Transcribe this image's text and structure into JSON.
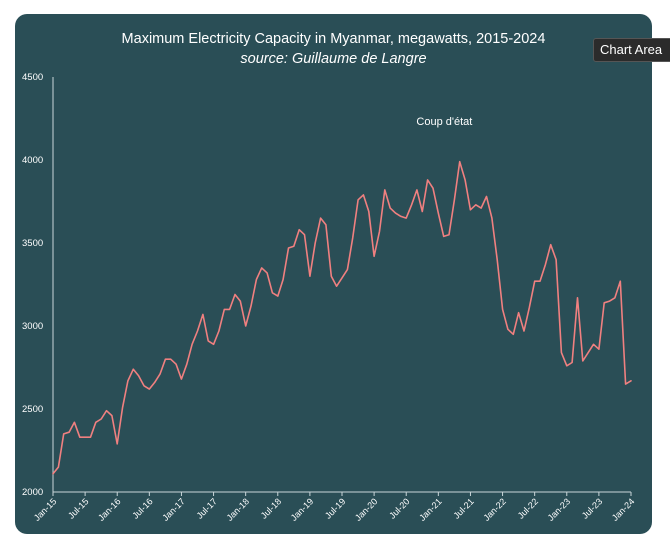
{
  "chart_data": {
    "type": "line",
    "title": "Maximum Electricity Capacity in Myanmar, megawatts, 2015-2024",
    "subtitle": "source: Guillaume de Langre",
    "xlabel": "",
    "ylabel": "",
    "ylim": [
      2000,
      4500
    ],
    "yticks": [
      2000,
      2500,
      3000,
      3500,
      4000,
      4500
    ],
    "grid": false,
    "series_color": "#f08080",
    "x_tick_labels": [
      "Jan-15",
      "Jul-15",
      "Jan-16",
      "Jul-16",
      "Jan-17",
      "Jul-17",
      "Jan-18",
      "Jul-18",
      "Jan-19",
      "Jul-19",
      "Jan-20",
      "Jul-20",
      "Jan-21",
      "Jul-21",
      "Jan-22",
      "Jul-22",
      "Jan-23",
      "Jul-23",
      "Jan-24"
    ],
    "annotations": [
      {
        "text": "Coup d'état",
        "x_index": 75
      }
    ],
    "series": [
      {
        "values": [
          2110,
          2150,
          2350,
          2360,
          2420,
          2330,
          2330,
          2330,
          2420,
          2440,
          2490,
          2460,
          2290,
          2510,
          2670,
          2740,
          2700,
          2640,
          2620,
          2660,
          2710,
          2800,
          2800,
          2770,
          2680,
          2770,
          2890,
          2970,
          3070,
          2910,
          2890,
          2970,
          3100,
          3100,
          3190,
          3150,
          3000,
          3120,
          3280,
          3350,
          3320,
          3200,
          3180,
          3280,
          3470,
          3480,
          3580,
          3550,
          3300,
          3500,
          3650,
          3610,
          3300,
          3240,
          3290,
          3340,
          3530,
          3760,
          3790,
          3690,
          3420,
          3570,
          3820,
          3710,
          3680,
          3660,
          3650,
          3730,
          3820,
          3690,
          3880,
          3830,
          3680,
          3540,
          3550,
          3760,
          3990,
          3880,
          3700,
          3730,
          3710,
          3780,
          3650,
          3400,
          3100,
          2980,
          2950,
          3080,
          2970,
          3110,
          3270,
          3270,
          3370,
          3490,
          3400,
          2840,
          2760,
          2780,
          3170,
          2790,
          2840,
          2890,
          2860,
          3140,
          3150,
          3170,
          3270,
          2650,
          2670
        ]
      }
    ]
  },
  "tooltip": {
    "label": "Chart Area"
  }
}
